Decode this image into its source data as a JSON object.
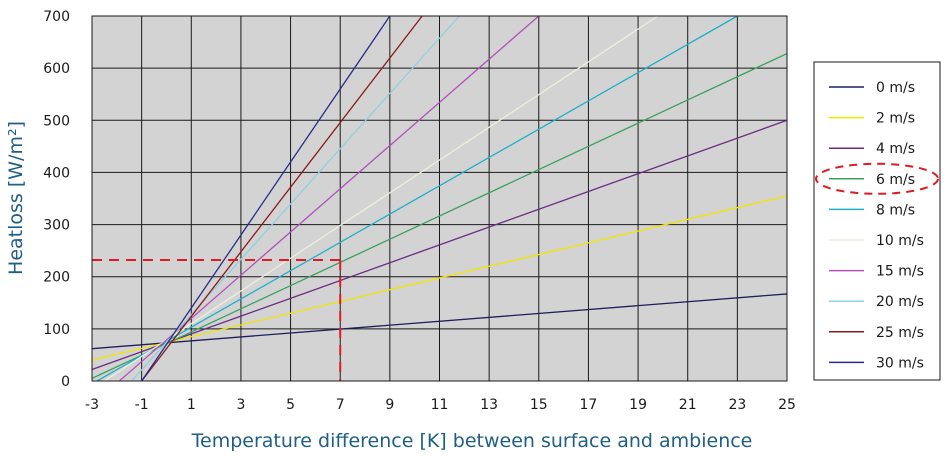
{
  "chart_data": {
    "type": "line",
    "title": "",
    "xlabel": "Temperature difference [K] between surface and ambience",
    "ylabel": "Heatloss [W/m²]",
    "xlim": [
      -3,
      25
    ],
    "ylim": [
      0,
      700
    ],
    "x_ticks": [
      "-3",
      "-1",
      "1",
      "3",
      "5",
      "7",
      "9",
      "11",
      "13",
      "15",
      "17",
      "19",
      "21",
      "23",
      "25"
    ],
    "y_ticks": [
      "0",
      "100",
      "200",
      "300",
      "400",
      "500",
      "600",
      "700"
    ],
    "grid": true,
    "plot_background": "#d3d3d3",
    "legend_position": "right",
    "series": [
      {
        "name": "0 m/s",
        "color": "#1f1f5c",
        "x": [
          -3,
          25
        ],
        "y": [
          62,
          167
        ]
      },
      {
        "name": "2 m/s",
        "color": "#f2e600",
        "x": [
          -3,
          25
        ],
        "y": [
          40,
          355
        ]
      },
      {
        "name": "4 m/s",
        "color": "#6a2c82",
        "x": [
          -3,
          25
        ],
        "y": [
          22,
          500
        ]
      },
      {
        "name": "6 m/s",
        "color": "#3aa060",
        "x": [
          -3,
          25
        ],
        "y": [
          5,
          628
        ]
      },
      {
        "name": "8 m/s",
        "color": "#1fb0c8",
        "x": [
          -2.8,
          23
        ],
        "y": [
          0,
          700
        ]
      },
      {
        "name": "10 m/s",
        "color": "#eeeee0",
        "x": [
          -2.5,
          19.8
        ],
        "y": [
          0,
          700
        ]
      },
      {
        "name": "15 m/s",
        "color": "#b050b8",
        "x": [
          -1.9,
          15
        ],
        "y": [
          0,
          700
        ]
      },
      {
        "name": "20 m/s",
        "color": "#90d0e0",
        "x": [
          -1.4,
          11.8
        ],
        "y": [
          0,
          700
        ]
      },
      {
        "name": "25 m/s",
        "color": "#8a1a1a",
        "x": [
          -1,
          10.3
        ],
        "y": [
          0,
          700
        ]
      },
      {
        "name": "30 m/s",
        "color": "#2b2b8a",
        "x": [
          -1,
          9
        ],
        "y": [
          0,
          700
        ]
      }
    ],
    "annotations": {
      "reference_point": {
        "x": 7,
        "y": 232,
        "color": "#dd1b22",
        "style": "dashed"
      },
      "highlighted_legend_entry": "6 m/s"
    }
  }
}
